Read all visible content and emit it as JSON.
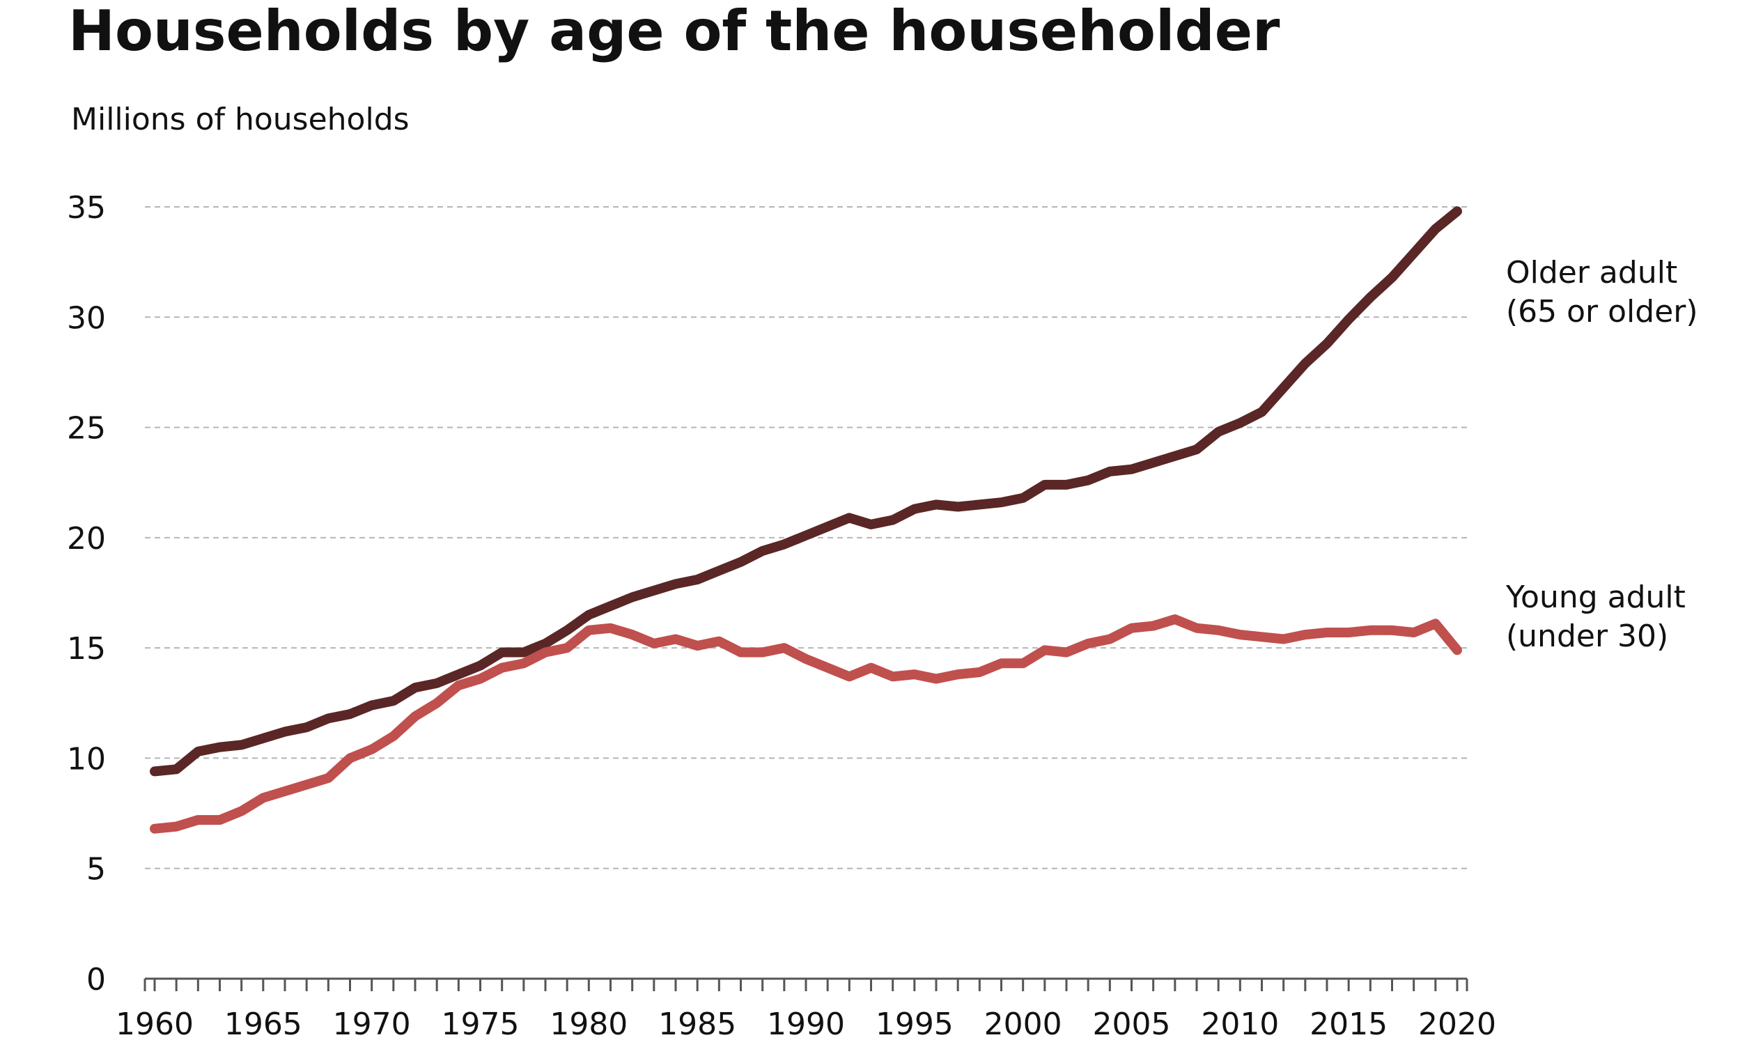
{
  "chart_data": {
    "type": "line",
    "title": "Households by age of the householder",
    "ylabel": "Millions of households",
    "xlabel": "",
    "ylim": [
      0,
      35
    ],
    "xlim": [
      1960,
      2020
    ],
    "yticks": [
      0,
      5,
      10,
      15,
      20,
      25,
      30,
      35
    ],
    "xticks": [
      1960,
      1965,
      1970,
      1975,
      1980,
      1985,
      1990,
      1995,
      2000,
      2005,
      2010,
      2015,
      2020
    ],
    "grid": true,
    "legend_placement": "right, inline at line ends",
    "x": [
      1960,
      1961,
      1962,
      1963,
      1964,
      1965,
      1966,
      1967,
      1968,
      1969,
      1970,
      1971,
      1972,
      1973,
      1974,
      1975,
      1976,
      1977,
      1978,
      1979,
      1980,
      1981,
      1982,
      1983,
      1984,
      1985,
      1986,
      1987,
      1988,
      1989,
      1990,
      1991,
      1992,
      1993,
      1994,
      1995,
      1996,
      1997,
      1998,
      1999,
      2000,
      2001,
      2002,
      2003,
      2004,
      2005,
      2006,
      2007,
      2008,
      2009,
      2010,
      2011,
      2012,
      2013,
      2014,
      2015,
      2016,
      2017,
      2018,
      2019,
      2020
    ],
    "series": [
      {
        "name": "Older adult (65 or older)",
        "label_lines": [
          "Older adult",
          "(65 or older)"
        ],
        "color": "#5a2626",
        "values": [
          9.4,
          9.5,
          10.3,
          10.5,
          10.6,
          10.9,
          11.2,
          11.4,
          11.8,
          12.0,
          12.4,
          12.6,
          13.2,
          13.4,
          13.8,
          14.2,
          14.8,
          14.8,
          15.2,
          15.8,
          16.5,
          16.9,
          17.3,
          17.6,
          17.9,
          18.1,
          18.5,
          18.9,
          19.4,
          19.7,
          20.1,
          20.5,
          20.9,
          20.6,
          20.8,
          21.3,
          21.5,
          21.4,
          21.5,
          21.6,
          21.8,
          22.4,
          22.4,
          22.6,
          23.0,
          23.1,
          23.4,
          23.7,
          24.0,
          24.8,
          25.2,
          25.7,
          26.8,
          27.9,
          28.8,
          29.9,
          30.9,
          31.8,
          32.9,
          34.0,
          34.8
        ]
      },
      {
        "name": "Young adult (under 30)",
        "label_lines": [
          "Young adult",
          "(under 30)"
        ],
        "color": "#c0504d",
        "values": [
          6.8,
          6.9,
          7.2,
          7.2,
          7.6,
          8.2,
          8.5,
          8.8,
          9.1,
          10.0,
          10.4,
          11.0,
          11.9,
          12.5,
          13.3,
          13.6,
          14.1,
          14.3,
          14.8,
          15.0,
          15.8,
          15.9,
          15.6,
          15.2,
          15.4,
          15.1,
          15.3,
          14.8,
          14.8,
          15.0,
          14.5,
          14.1,
          13.7,
          14.1,
          13.7,
          13.8,
          13.6,
          13.8,
          13.9,
          14.3,
          14.3,
          14.9,
          14.8,
          15.2,
          15.4,
          15.9,
          16.0,
          16.3,
          15.9,
          15.8,
          15.6,
          15.5,
          15.4,
          15.6,
          15.7,
          15.7,
          15.8,
          15.8,
          15.7,
          16.1,
          14.9
        ]
      }
    ]
  }
}
